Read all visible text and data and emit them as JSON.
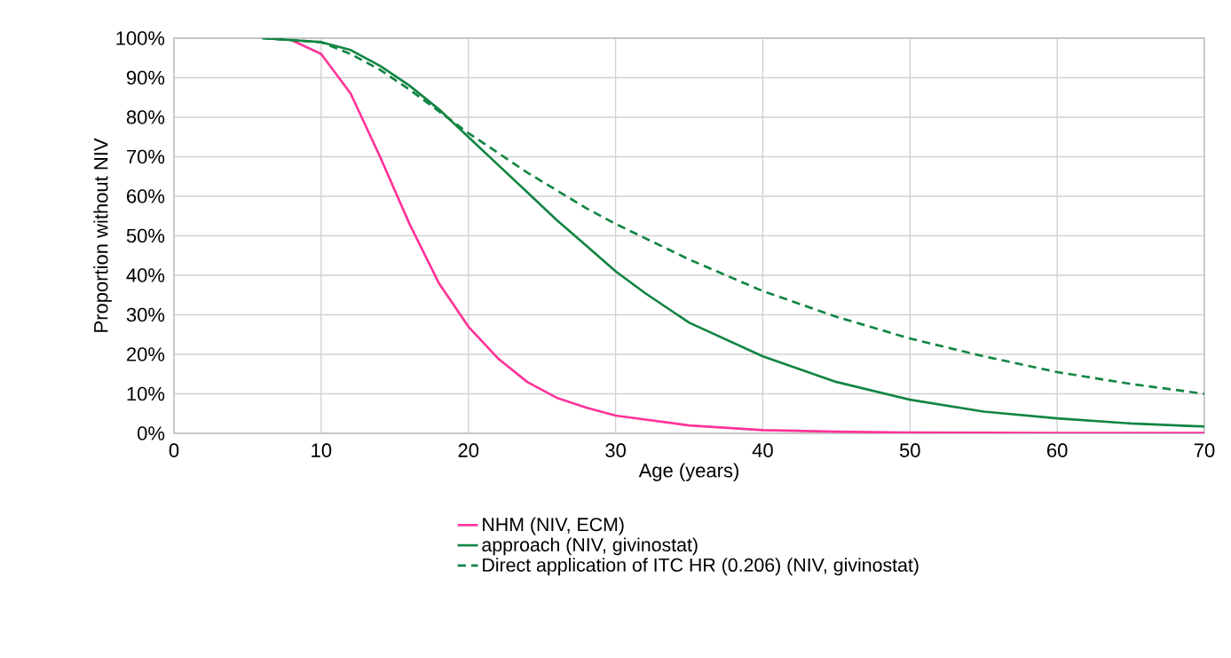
{
  "chart_data": {
    "type": "line",
    "xlabel": "Age (years)",
    "ylabel": "Proportion without NIV",
    "xlim": [
      0,
      70
    ],
    "xticks": [
      0,
      10,
      20,
      30,
      40,
      50,
      60,
      70
    ],
    "ylim": [
      0,
      100
    ],
    "yticks": [
      {
        "value": 0,
        "label": "0%"
      },
      {
        "value": 10,
        "label": "10%"
      },
      {
        "value": 20,
        "label": "20%"
      },
      {
        "value": 30,
        "label": "30%"
      },
      {
        "value": 40,
        "label": "40%"
      },
      {
        "value": 50,
        "label": "50%"
      },
      {
        "value": 60,
        "label": "60%"
      },
      {
        "value": 70,
        "label": "70%"
      },
      {
        "value": 80,
        "label": "80%"
      },
      {
        "value": 90,
        "label": "90%"
      },
      {
        "value": 100,
        "label": "100%"
      }
    ],
    "grid": true,
    "legend": "bottom",
    "marker": "none",
    "series": [
      {
        "name": "NHM (NIV, ECM)",
        "color": "#ff3399",
        "line_style": "solid",
        "x": [
          8,
          10,
          12,
          14,
          16,
          18,
          20,
          22,
          24,
          26,
          28,
          30,
          35,
          40,
          45,
          50,
          60,
          70
        ],
        "values": [
          99.5,
          96,
          86,
          70,
          53,
          38,
          27,
          19,
          13,
          9,
          6.5,
          4.5,
          2,
          0.8,
          0.4,
          0.2,
          0.1,
          0.1
        ]
      },
      {
        "name": "approach (NIV, givinostat)",
        "color": "#128543",
        "line_style": "solid",
        "x": [
          6,
          10,
          12,
          14,
          16,
          18,
          20,
          22,
          24,
          26,
          28,
          30,
          32,
          35,
          40,
          45,
          50,
          55,
          60,
          65,
          70
        ],
        "values": [
          100,
          99,
          97,
          93,
          88,
          82,
          75,
          68,
          61,
          54,
          47.5,
          41,
          35.5,
          28,
          19.5,
          13,
          8.5,
          5.5,
          3.8,
          2.5,
          1.7
        ]
      },
      {
        "name": "Direct application of ITC HR (0.206) (NIV, givinostat)",
        "color": "#128543",
        "line_style": "dashed",
        "x": [
          6,
          10,
          12,
          14,
          16,
          18,
          20,
          22,
          24,
          26,
          28,
          30,
          35,
          40,
          45,
          50,
          55,
          60,
          65,
          70
        ],
        "values": [
          100,
          99,
          96,
          92,
          87,
          81.5,
          76,
          71,
          66,
          61.5,
          57,
          53,
          44,
          36,
          29.5,
          24,
          19.5,
          15.5,
          12.5,
          10
        ]
      }
    ]
  }
}
